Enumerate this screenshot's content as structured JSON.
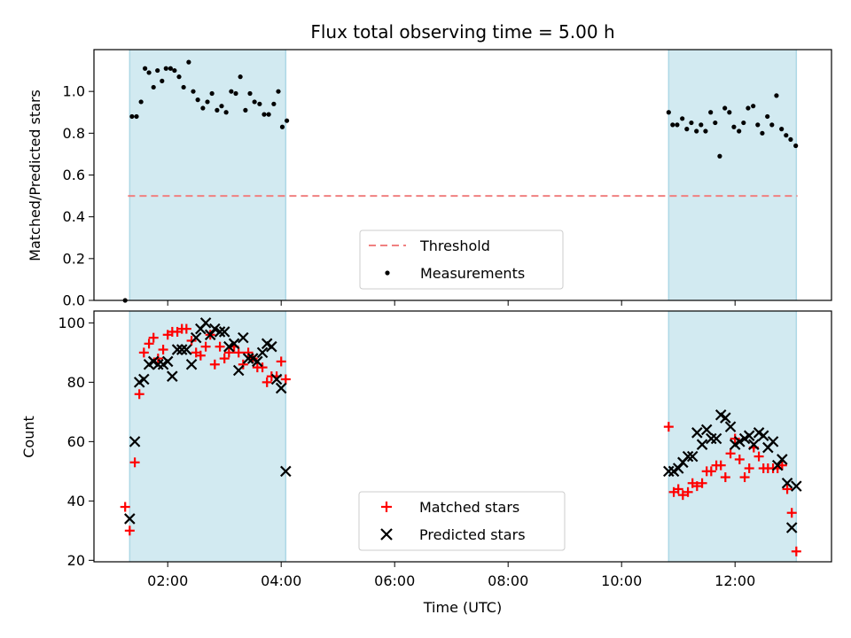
{
  "chart_data": {
    "title": "Flux total observing time = 5.00 h",
    "xlabel": "Time (UTC)",
    "x_unit": "hours UTC",
    "xlim": [
      0.7,
      13.7
    ],
    "xticks": [
      {
        "value": 2,
        "label": "02:00"
      },
      {
        "value": 4,
        "label": "04:00"
      },
      {
        "value": 6,
        "label": "06:00"
      },
      {
        "value": 8,
        "label": "08:00"
      },
      {
        "value": 10,
        "label": "10:00"
      },
      {
        "value": 12,
        "label": "12:00"
      }
    ],
    "shaded_intervals": [
      [
        1.33,
        4.08
      ],
      [
        10.83,
        13.08
      ]
    ],
    "shade_color": "#add8e6",
    "top": {
      "type": "scatter",
      "ylabel": "Matched/Predicted stars",
      "ylim": [
        0,
        1.2
      ],
      "yticks": [
        "0.0",
        "0.2",
        "0.4",
        "0.6",
        "0.8",
        "1.0"
      ],
      "threshold": {
        "name": "Threshold",
        "value": 0.5,
        "x_range": [
          1.3,
          13.1
        ],
        "color": "#f08080"
      },
      "measurements_name": "Measurements",
      "x": [
        1.25,
        1.37,
        1.45,
        1.53,
        1.6,
        1.67,
        1.75,
        1.82,
        1.9,
        1.97,
        2.05,
        2.12,
        2.2,
        2.28,
        2.37,
        2.45,
        2.53,
        2.62,
        2.7,
        2.78,
        2.87,
        2.95,
        3.03,
        3.12,
        3.2,
        3.28,
        3.37,
        3.45,
        3.53,
        3.62,
        3.7,
        3.78,
        3.87,
        3.95,
        4.02,
        4.1,
        10.83,
        10.9,
        10.98,
        11.07,
        11.15,
        11.23,
        11.32,
        11.4,
        11.48,
        11.57,
        11.65,
        11.73,
        11.82,
        11.9,
        11.98,
        12.07,
        12.15,
        12.23,
        12.32,
        12.4,
        12.48,
        12.57,
        12.65,
        12.73,
        12.82,
        12.9,
        12.98,
        13.07
      ],
      "y": [
        0.0,
        0.88,
        0.88,
        0.95,
        1.11,
        1.09,
        1.02,
        1.1,
        1.05,
        1.11,
        1.11,
        1.1,
        1.07,
        1.02,
        1.14,
        1.0,
        0.96,
        0.92,
        0.95,
        0.99,
        0.91,
        0.93,
        0.9,
        1.0,
        0.99,
        1.07,
        0.91,
        0.99,
        0.95,
        0.94,
        0.89,
        0.89,
        0.94,
        1.0,
        0.83,
        0.86,
        0.9,
        0.84,
        0.84,
        0.87,
        0.82,
        0.85,
        0.81,
        0.84,
        0.81,
        0.9,
        0.85,
        0.69,
        0.92,
        0.9,
        0.83,
        0.81,
        0.85,
        0.92,
        0.93,
        0.84,
        0.8,
        0.88,
        0.84,
        0.98,
        0.82,
        0.79,
        0.77,
        0.74
      ]
    },
    "bottom": {
      "type": "scatter",
      "ylabel": "Count",
      "ylim": [
        19.5,
        104
      ],
      "yticks": [
        "20",
        "40",
        "60",
        "80",
        "100"
      ],
      "matched_name": "Matched stars",
      "predicted_name": "Predicted stars",
      "matched_x": [
        1.25,
        1.33,
        1.42,
        1.5,
        1.58,
        1.67,
        1.75,
        1.83,
        1.92,
        2.0,
        2.08,
        2.17,
        2.25,
        2.33,
        2.42,
        2.5,
        2.58,
        2.67,
        2.75,
        2.83,
        2.92,
        3.0,
        3.08,
        3.17,
        3.25,
        3.33,
        3.42,
        3.5,
        3.58,
        3.67,
        3.75,
        3.83,
        3.92,
        4.0,
        4.08,
        10.83,
        10.92,
        11.0,
        11.08,
        11.17,
        11.25,
        11.33,
        11.42,
        11.5,
        11.58,
        11.67,
        11.75,
        11.83,
        11.92,
        12.0,
        12.08,
        12.17,
        12.25,
        12.33,
        12.42,
        12.5,
        12.58,
        12.67,
        12.75,
        12.83,
        12.92,
        13.0,
        13.08
      ],
      "matched_y": [
        38,
        30,
        53,
        76,
        90,
        93,
        95,
        88,
        91,
        96,
        97,
        97,
        98,
        98,
        94,
        90,
        89,
        92,
        96,
        86,
        92,
        88,
        90,
        92,
        90,
        86,
        90,
        88,
        85,
        85,
        80,
        82,
        82,
        87,
        81,
        65,
        43,
        44,
        42,
        43,
        46,
        45,
        46,
        50,
        50,
        52,
        52,
        48,
        56,
        61,
        54,
        48,
        51,
        58,
        55,
        51,
        51,
        51,
        51,
        52,
        44,
        36,
        23
      ],
      "predicted_x": [
        1.33,
        1.42,
        1.5,
        1.58,
        1.67,
        1.75,
        1.83,
        1.92,
        2.0,
        2.08,
        2.17,
        2.25,
        2.33,
        2.42,
        2.5,
        2.58,
        2.67,
        2.75,
        2.83,
        2.92,
        3.0,
        3.08,
        3.17,
        3.25,
        3.33,
        3.42,
        3.5,
        3.58,
        3.67,
        3.75,
        3.83,
        3.92,
        4.0,
        4.08,
        10.83,
        10.92,
        11.0,
        11.08,
        11.17,
        11.25,
        11.33,
        11.42,
        11.5,
        11.58,
        11.67,
        11.75,
        11.83,
        11.92,
        12.0,
        12.08,
        12.17,
        12.25,
        12.33,
        12.42,
        12.5,
        12.58,
        12.67,
        12.75,
        12.83,
        12.92,
        13.0,
        13.08
      ],
      "predicted_y": [
        34,
        60,
        80,
        81,
        86,
        87,
        86,
        86,
        87,
        82,
        91,
        91,
        91,
        86,
        95,
        98,
        100,
        96,
        98,
        97,
        97,
        92,
        93,
        84,
        95,
        88,
        88,
        87,
        90,
        93,
        92,
        81,
        78,
        50,
        50,
        50,
        51,
        53,
        55,
        55,
        63,
        59,
        64,
        61,
        61,
        69,
        68,
        65,
        59,
        60,
        61,
        62,
        59,
        63,
        62,
        58,
        60,
        52,
        54,
        46,
        31,
        45
      ]
    }
  }
}
